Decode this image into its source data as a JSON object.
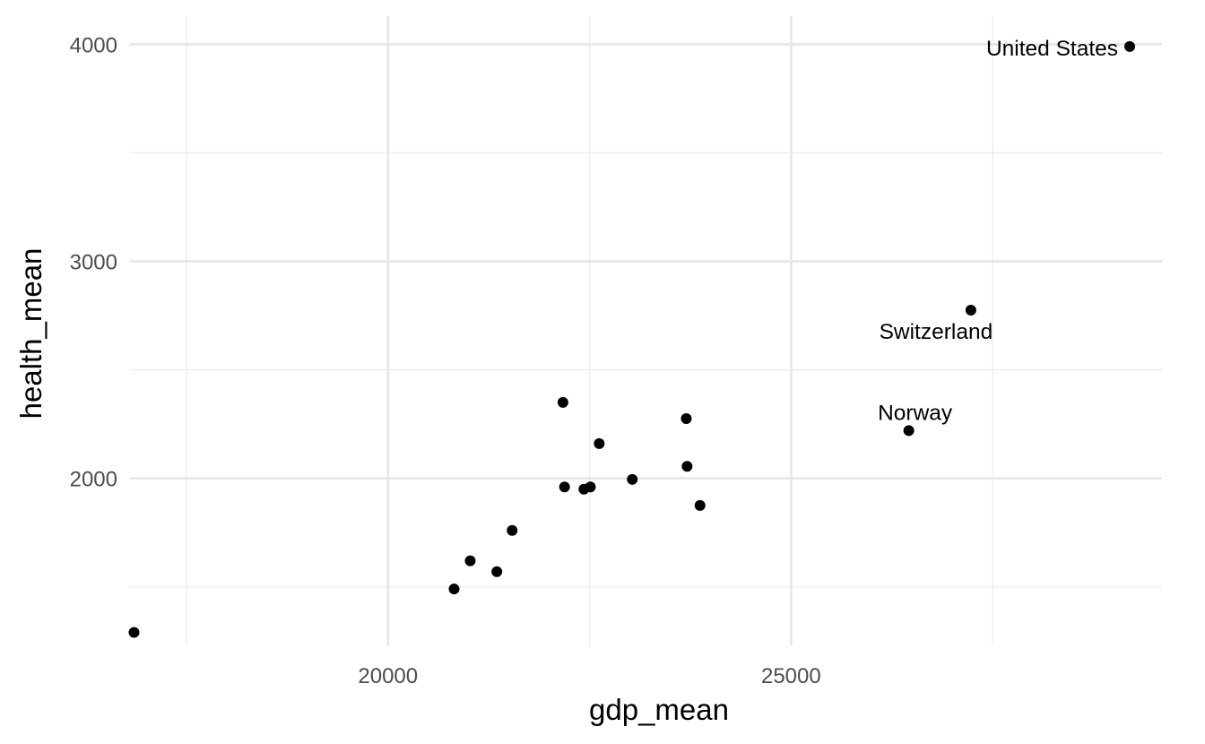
{
  "chart_data": {
    "type": "scatter",
    "title": "",
    "xlabel": "gdp_mean",
    "ylabel": "health_mean",
    "xlim": [
      16800,
      29600
    ],
    "ylim": [
      1230,
      4130
    ],
    "x_ticks": [
      20000,
      25000
    ],
    "x_tick_labels": [
      "20000",
      "25000"
    ],
    "x_minor": [
      17500,
      22500,
      27500
    ],
    "y_ticks": [
      2000,
      3000,
      4000
    ],
    "y_tick_labels": [
      "2000",
      "3000",
      "4000"
    ],
    "y_minor": [
      1500,
      2500,
      3500
    ],
    "grid": true,
    "legend": "none",
    "colors": {
      "point": "#000000",
      "grid": "#e6e6e6",
      "background": "#ffffff"
    },
    "points": [
      {
        "x": 16850,
        "y": 1290,
        "label": ""
      },
      {
        "x": 20820,
        "y": 1490,
        "label": ""
      },
      {
        "x": 21020,
        "y": 1620,
        "label": ""
      },
      {
        "x": 21350,
        "y": 1570,
        "label": ""
      },
      {
        "x": 21540,
        "y": 1760,
        "label": ""
      },
      {
        "x": 22170,
        "y": 2350,
        "label": ""
      },
      {
        "x": 22190,
        "y": 1960,
        "label": ""
      },
      {
        "x": 22430,
        "y": 1950,
        "label": ""
      },
      {
        "x": 22510,
        "y": 1960,
        "label": ""
      },
      {
        "x": 22620,
        "y": 2160,
        "label": ""
      },
      {
        "x": 23030,
        "y": 1995,
        "label": ""
      },
      {
        "x": 23700,
        "y": 2275,
        "label": ""
      },
      {
        "x": 23710,
        "y": 2055,
        "label": ""
      },
      {
        "x": 23870,
        "y": 1875,
        "label": ""
      },
      {
        "x": 26460,
        "y": 2220,
        "label": "Norway",
        "label_pos": "above"
      },
      {
        "x": 27230,
        "y": 2775,
        "label": "Switzerland",
        "label_pos": "below-left"
      },
      {
        "x": 29200,
        "y": 3990,
        "label": "United States",
        "label_pos": "left"
      }
    ]
  }
}
